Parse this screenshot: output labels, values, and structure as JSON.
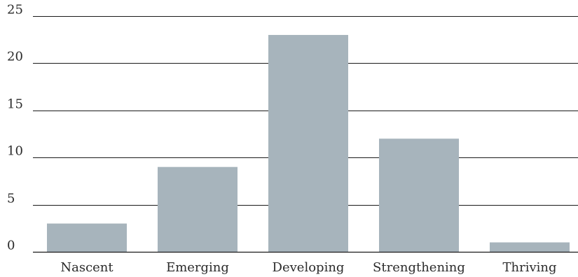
{
  "chart_data": {
    "type": "bar",
    "title": "",
    "xlabel": "",
    "ylabel": "",
    "categories": [
      "Nascent",
      "Emerging",
      "Developing",
      "Strengthening",
      "Thriving"
    ],
    "values": [
      3,
      9,
      23,
      12,
      1
    ],
    "ylim": [
      0,
      25
    ],
    "yticks": [
      0,
      5,
      10,
      15,
      20,
      25
    ],
    "grid": true,
    "legend": "none",
    "bar_color": "#a7b4bc",
    "grid_color": "#1a1a1a",
    "text_color": "#2b2b2b"
  }
}
